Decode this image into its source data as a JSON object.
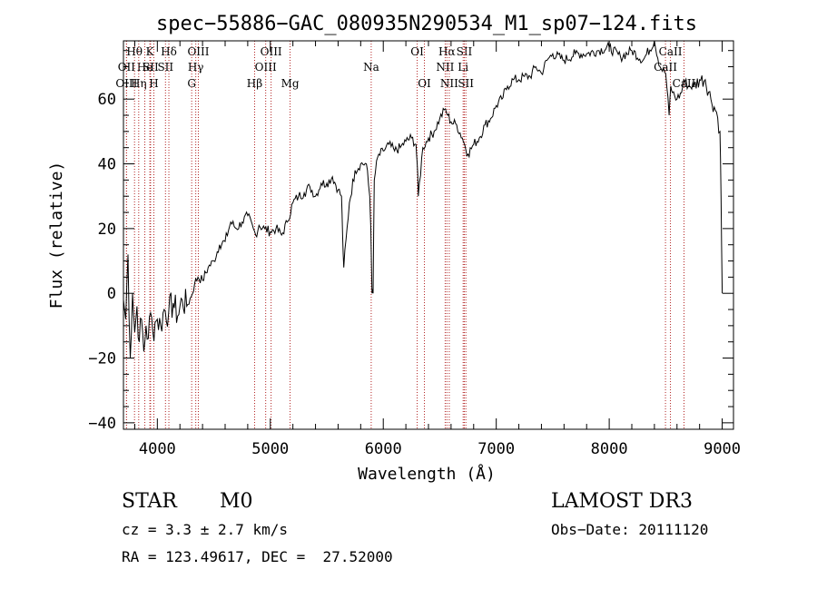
{
  "chart_data": {
    "type": "line",
    "title": "spec−55886−GAC_080935N290534_M1_sp07−124.fits",
    "xlabel": "Wavelength (Å)",
    "ylabel": "Flux (relative)",
    "xlim": [
      3700,
      9100
    ],
    "ylim": [
      -42,
      78
    ],
    "xticks": [
      4000,
      5000,
      6000,
      7000,
      8000,
      9000
    ],
    "xtick_labels": [
      "4000",
      "5000",
      "6000",
      "7000",
      "8000",
      "9000"
    ],
    "yticks": [
      -40,
      -20,
      0,
      20,
      40,
      60
    ],
    "ytick_labels": [
      "−40",
      "−20",
      "0",
      "20",
      "40",
      "60"
    ],
    "series": [
      {
        "name": "flux",
        "x": [
          3700,
          3720,
          3740,
          3760,
          3780,
          3800,
          3820,
          3840,
          3860,
          3880,
          3900,
          3920,
          3940,
          3960,
          3980,
          4000,
          4030,
          4060,
          4100,
          4140,
          4180,
          4220,
          4260,
          4300,
          4330,
          4360,
          4400,
          4450,
          4500,
          4550,
          4600,
          4650,
          4700,
          4750,
          4800,
          4850,
          4870,
          4900,
          4950,
          5000,
          5050,
          5100,
          5150,
          5200,
          5250,
          5300,
          5350,
          5400,
          5450,
          5500,
          5550,
          5600,
          5630,
          5640,
          5650,
          5700,
          5750,
          5800,
          5850,
          5880,
          5890,
          5900,
          5910,
          5920,
          5950,
          6000,
          6050,
          6100,
          6150,
          6200,
          6250,
          6290,
          6300,
          6310,
          6350,
          6400,
          6450,
          6500,
          6550,
          6570,
          6600,
          6650,
          6700,
          6750,
          6800,
          6850,
          6900,
          6950,
          7000,
          7050,
          7100,
          7150,
          7200,
          7250,
          7300,
          7350,
          7400,
          7450,
          7500,
          7600,
          7700,
          7800,
          7900,
          8000,
          8100,
          8200,
          8300,
          8400,
          8450,
          8500,
          8530,
          8545,
          8560,
          8600,
          8640,
          8660,
          8700,
          8750,
          8800,
          8850,
          8900,
          8950,
          8980,
          8990,
          9000
        ],
        "y": [
          -2,
          -8,
          12,
          -20,
          0,
          -12,
          -4,
          -15,
          -8,
          -18,
          -10,
          -14,
          -6,
          -12,
          -9,
          -8,
          -10,
          -5,
          -6,
          -3,
          -7,
          -2,
          -4,
          -1,
          3,
          5,
          4,
          8,
          10,
          15,
          16,
          22,
          20,
          22,
          24,
          20,
          18,
          21,
          20,
          19,
          20,
          18,
          22,
          28,
          30,
          31,
          33,
          30,
          34,
          34,
          36,
          32,
          30,
          18,
          8,
          28,
          38,
          40,
          40,
          30,
          20,
          0,
          0,
          35,
          42,
          44,
          46,
          44,
          45,
          47,
          48,
          46,
          40,
          30,
          45,
          48,
          50,
          54,
          57,
          55,
          53,
          52,
          48,
          43,
          46,
          48,
          52,
          54,
          58,
          60,
          64,
          66,
          66,
          67,
          67,
          70,
          68,
          72,
          74,
          72,
          74,
          74,
          75,
          76,
          73,
          75,
          72,
          78,
          70,
          68,
          55,
          64,
          62,
          60,
          62,
          66,
          64,
          64,
          66,
          66,
          60,
          56,
          50,
          30,
          0
        ],
        "color": "#000000"
      }
    ],
    "emission_lines": [
      {
        "label": "Hθ",
        "wavelength": 3798,
        "row": 1
      },
      {
        "label": "OII",
        "wavelength": 3727,
        "row": 2
      },
      {
        "label": "OIII",
        "wavelength": 3727,
        "row": 3
      },
      {
        "label": "He",
        "wavelength": 3889,
        "row": 2
      },
      {
        "label": "Hη",
        "wavelength": 3835,
        "row": 3
      },
      {
        "label": "K",
        "wavelength": 3934,
        "row": 1
      },
      {
        "label": "SII",
        "wavelength": 3940,
        "row": 2
      },
      {
        "label": "H",
        "wavelength": 3969,
        "row": 3
      },
      {
        "label": "Hδ",
        "wavelength": 4102,
        "row": 1
      },
      {
        "label": "SII",
        "wavelength": 4072,
        "row": 2
      },
      {
        "label": "OIII",
        "wavelength": 4363,
        "row": 1
      },
      {
        "label": "Hγ",
        "wavelength": 4340,
        "row": 2
      },
      {
        "label": "G",
        "wavelength": 4304,
        "row": 3
      },
      {
        "label": "OIII",
        "wavelength": 5007,
        "row": 1
      },
      {
        "label": "OIII",
        "wavelength": 4959,
        "row": 2
      },
      {
        "label": "Hβ",
        "wavelength": 4861,
        "row": 3
      },
      {
        "label": "Mg",
        "wavelength": 5175,
        "row": 3
      },
      {
        "label": "Na",
        "wavelength": 5893,
        "row": 2
      },
      {
        "label": "OI",
        "wavelength": 6300,
        "row": 1
      },
      {
        "label": "OI",
        "wavelength": 6364,
        "row": 3
      },
      {
        "label": "Hα",
        "wavelength": 6563,
        "row": 1
      },
      {
        "label": "SII",
        "wavelength": 6717,
        "row": 1
      },
      {
        "label": "NII",
        "wavelength": 6548,
        "row": 2
      },
      {
        "label": "Li",
        "wavelength": 6707,
        "row": 2
      },
      {
        "label": "NII",
        "wavelength": 6584,
        "row": 3
      },
      {
        "label": "SII",
        "wavelength": 6731,
        "row": 3
      },
      {
        "label": "CaII",
        "wavelength": 8542,
        "row": 1
      },
      {
        "label": "CaII",
        "wavelength": 8498,
        "row": 2
      },
      {
        "label": "CaII",
        "wavelength": 8662,
        "row": 3
      }
    ]
  },
  "info": {
    "class": "STAR",
    "subclass": "M0",
    "survey": "LAMOST DR3",
    "redshift": "cz = 3.3 ± 2.7 km/s",
    "obs_date": "Obs−Date: 20111120",
    "coords": "RA = 123.49617, DEC =  27.52000"
  }
}
